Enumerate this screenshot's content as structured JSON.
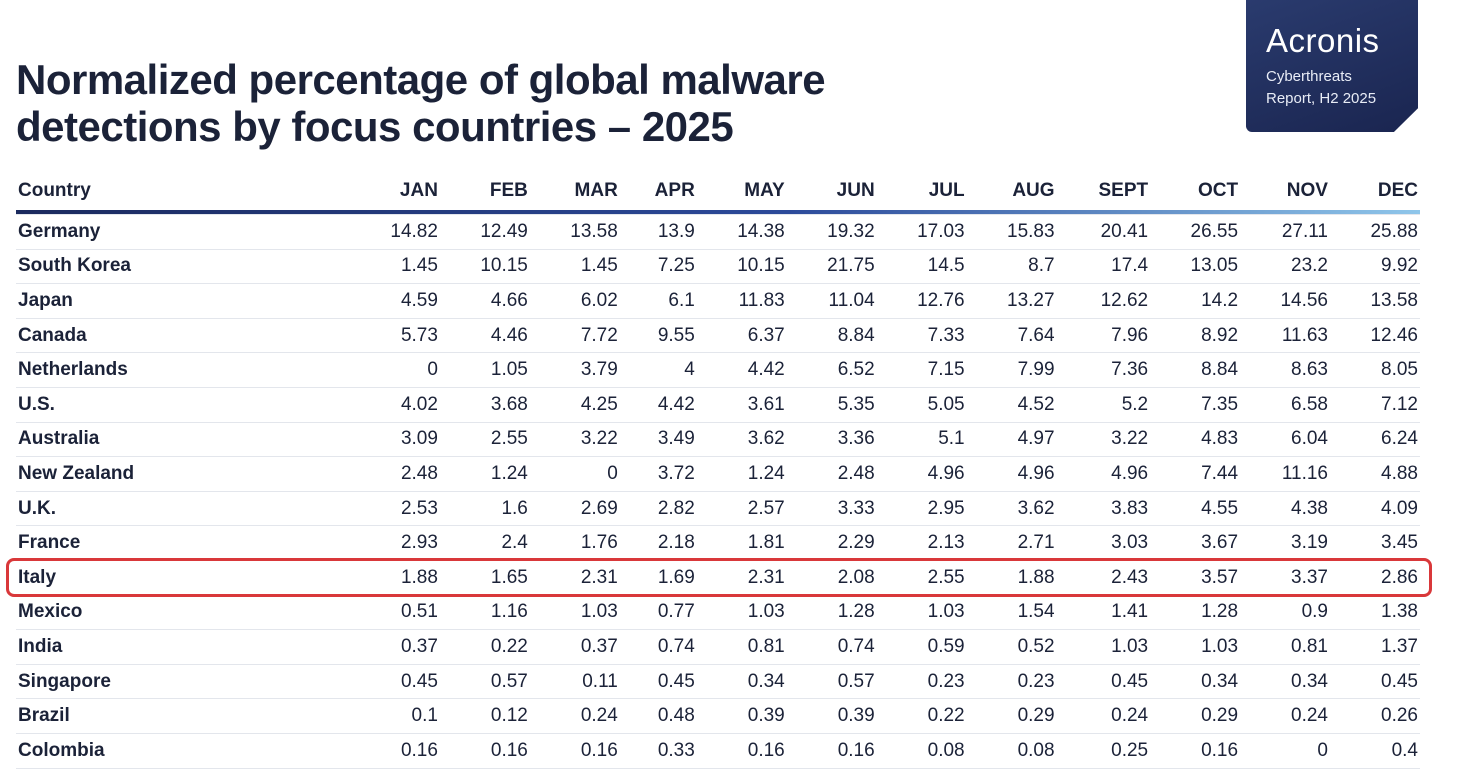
{
  "title_line1": "Normalized percentage of global malware",
  "title_line2": "detections by focus countries – 2025",
  "badge": {
    "brand": "Acronis",
    "sub_line1": "Cyberthreats",
    "sub_line2": "Report, H2 2025"
  },
  "colors": {
    "title": "#1b2238",
    "badge_bg": "#1a2550",
    "highlight": "#d9383a",
    "rule_start": "#1b2a5e",
    "rule_end": "#8fc6ea"
  },
  "chart_data": {
    "type": "table",
    "title": "Normalized percentage of global malware detections by focus countries – 2025",
    "highlighted_row": "Italy",
    "columns": [
      "Country",
      "JAN",
      "FEB",
      "MAR",
      "APR",
      "MAY",
      "JUN",
      "JUL",
      "AUG",
      "SEPT",
      "OCT",
      "NOV",
      "DEC"
    ],
    "rows": [
      [
        "Germany",
        "14.82",
        "12.49",
        "13.58",
        "13.9",
        "14.38",
        "19.32",
        "17.03",
        "15.83",
        "20.41",
        "26.55",
        "27.11",
        "25.88"
      ],
      [
        "South Korea",
        "1.45",
        "10.15",
        "1.45",
        "7.25",
        "10.15",
        "21.75",
        "14.5",
        "8.7",
        "17.4",
        "13.05",
        "23.2",
        "9.92"
      ],
      [
        "Japan",
        "4.59",
        "4.66",
        "6.02",
        "6.1",
        "11.83",
        "11.04",
        "12.76",
        "13.27",
        "12.62",
        "14.2",
        "14.56",
        "13.58"
      ],
      [
        "Canada",
        "5.73",
        "4.46",
        "7.72",
        "9.55",
        "6.37",
        "8.84",
        "7.33",
        "7.64",
        "7.96",
        "8.92",
        "11.63",
        "12.46"
      ],
      [
        "Netherlands",
        "0",
        "1.05",
        "3.79",
        "4",
        "4.42",
        "6.52",
        "7.15",
        "7.99",
        "7.36",
        "8.84",
        "8.63",
        "8.05"
      ],
      [
        "U.S.",
        "4.02",
        "3.68",
        "4.25",
        "4.42",
        "3.61",
        "5.35",
        "5.05",
        "4.52",
        "5.2",
        "7.35",
        "6.58",
        "7.12"
      ],
      [
        "Australia",
        "3.09",
        "2.55",
        "3.22",
        "3.49",
        "3.62",
        "3.36",
        "5.1",
        "4.97",
        "3.22",
        "4.83",
        "6.04",
        "6.24"
      ],
      [
        "New Zealand",
        "2.48",
        "1.24",
        "0",
        "3.72",
        "1.24",
        "2.48",
        "4.96",
        "4.96",
        "4.96",
        "7.44",
        "11.16",
        "4.88"
      ],
      [
        "U.K.",
        "2.53",
        "1.6",
        "2.69",
        "2.82",
        "2.57",
        "3.33",
        "2.95",
        "3.62",
        "3.83",
        "4.55",
        "4.38",
        "4.09"
      ],
      [
        "France",
        "2.93",
        "2.4",
        "1.76",
        "2.18",
        "1.81",
        "2.29",
        "2.13",
        "2.71",
        "3.03",
        "3.67",
        "3.19",
        "3.45"
      ],
      [
        "Italy",
        "1.88",
        "1.65",
        "2.31",
        "1.69",
        "2.31",
        "2.08",
        "2.55",
        "1.88",
        "2.43",
        "3.57",
        "3.37",
        "2.86"
      ],
      [
        "Mexico",
        "0.51",
        "1.16",
        "1.03",
        "0.77",
        "1.03",
        "1.28",
        "1.03",
        "1.54",
        "1.41",
        "1.28",
        "0.9",
        "1.38"
      ],
      [
        "India",
        "0.37",
        "0.22",
        "0.37",
        "0.74",
        "0.81",
        "0.74",
        "0.59",
        "0.52",
        "1.03",
        "1.03",
        "0.81",
        "1.37"
      ],
      [
        "Singapore",
        "0.45",
        "0.57",
        "0.11",
        "0.45",
        "0.34",
        "0.57",
        "0.23",
        "0.23",
        "0.45",
        "0.34",
        "0.34",
        "0.45"
      ],
      [
        "Brazil",
        "0.1",
        "0.12",
        "0.24",
        "0.48",
        "0.39",
        "0.39",
        "0.22",
        "0.29",
        "0.24",
        "0.29",
        "0.24",
        "0.26"
      ],
      [
        "Colombia",
        "0.16",
        "0.16",
        "0.16",
        "0.33",
        "0.16",
        "0.16",
        "0.08",
        "0.08",
        "0.25",
        "0.16",
        "0",
        "0.4"
      ]
    ]
  }
}
